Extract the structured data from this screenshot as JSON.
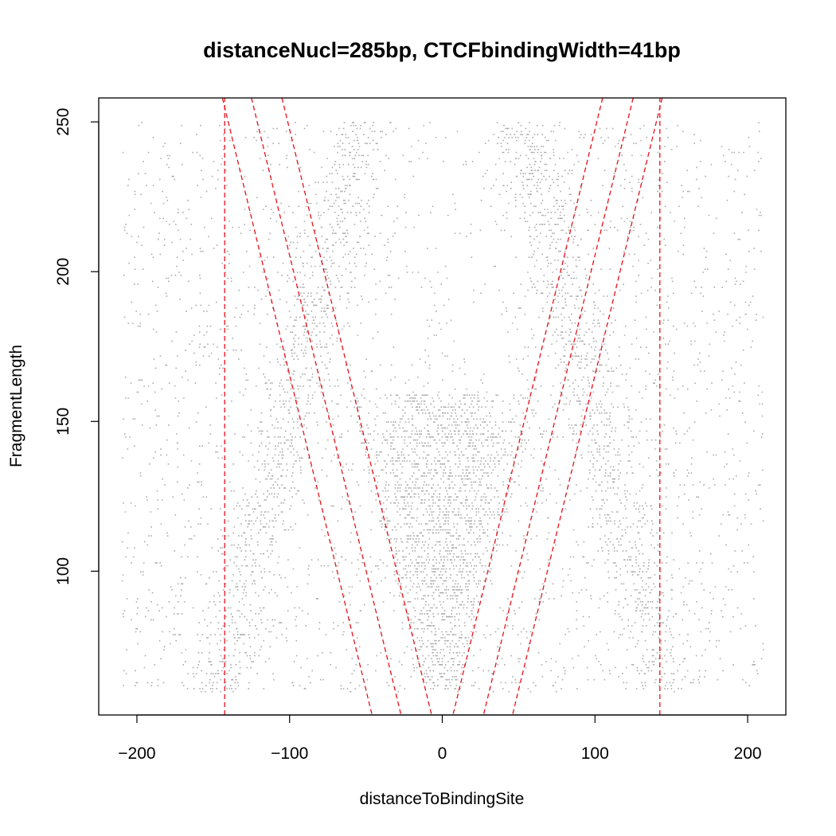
{
  "chart_data": {
    "type": "scatter",
    "title": "distanceNucl=285bp, CTCFbindingWidth=41bp",
    "xlabel": "distanceToBindingSite",
    "ylabel": "FragmentLength",
    "xlim": [
      -225,
      225
    ],
    "ylim": [
      52,
      258
    ],
    "x_ticks": [
      -200,
      -100,
      0,
      100,
      200
    ],
    "x_tick_labels": [
      "−200",
      "−100",
      "0",
      "100",
      "200"
    ],
    "y_ticks": [
      100,
      150,
      200,
      250
    ],
    "y_tick_labels": [
      "100",
      "150",
      "200",
      "250"
    ],
    "grid": false,
    "point_color": "#666666",
    "line_color": "#e8101a",
    "points": {
      "x_range": [
        -210,
        210
      ],
      "y_range": [
        60,
        250
      ],
      "description_levels": "fragment midpoints; dense V-shaped cone centered at 0 with nucleosome bands along x = ±(285 - y)/2"
    },
    "reference_lines": [
      {
        "name": "left-nucleosome-center",
        "x1": -142.5,
        "y1": 52,
        "x2": -142.5,
        "y2": 258,
        "style": "dashed"
      },
      {
        "name": "right-nucleosome-center",
        "x1": 142.5,
        "y1": 52,
        "x2": 142.5,
        "y2": 258,
        "style": "dashed"
      },
      {
        "name": "left-diag-outer",
        "x1": -144,
        "y1": 258,
        "x2": -46,
        "y2": 52,
        "style": "dashed"
      },
      {
        "name": "left-diag-middle",
        "x1": -125,
        "y1": 258,
        "x2": -27,
        "y2": 52,
        "style": "dashed"
      },
      {
        "name": "left-diag-inner",
        "x1": -105,
        "y1": 258,
        "x2": -7,
        "y2": 52,
        "style": "dashed"
      },
      {
        "name": "right-diag-inner",
        "x1": 105,
        "y1": 258,
        "x2": 7,
        "y2": 52,
        "style": "dashed"
      },
      {
        "name": "right-diag-middle",
        "x1": 125,
        "y1": 258,
        "x2": 27,
        "y2": 52,
        "style": "dashed"
      },
      {
        "name": "right-diag-outer",
        "x1": 144,
        "y1": 258,
        "x2": 46,
        "y2": 52,
        "style": "dashed"
      }
    ]
  }
}
